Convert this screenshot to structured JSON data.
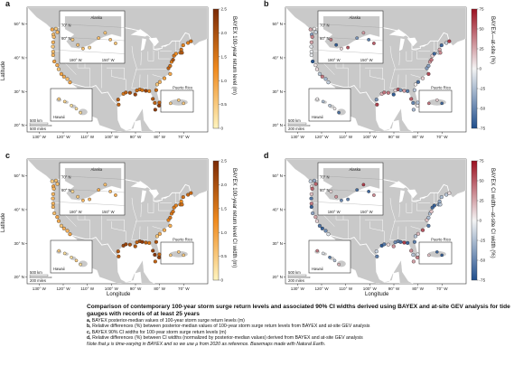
{
  "panels": [
    {
      "id": "a",
      "scale": "sequential",
      "colorbar_title": "BAYEX 100-year return level (m)",
      "ticks": [
        "0",
        "0.5",
        "1.0",
        "1.5",
        "2.0",
        "2.5"
      ],
      "show_latitude": true,
      "show_longitude": false
    },
    {
      "id": "b",
      "scale": "diverging",
      "colorbar_title": "BAYEX—at-site (%)",
      "ticks": [
        "-75",
        "-50",
        "-25",
        "0",
        "25",
        "50",
        "75"
      ],
      "show_latitude": false,
      "show_longitude": false
    },
    {
      "id": "c",
      "scale": "sequential",
      "colorbar_title": "BAYEX 100-year return level CI width (m)",
      "ticks": [
        "0",
        "0.5",
        "1.0",
        "1.5",
        "2.0",
        "2.5"
      ],
      "show_latitude": true,
      "show_longitude": true
    },
    {
      "id": "d",
      "scale": "diverging",
      "colorbar_title": "BAYEX CI width—at-site CI width (%)",
      "ticks": [
        "-75",
        "-50",
        "-25",
        "0",
        "25",
        "50",
        "75"
      ],
      "show_latitude": false,
      "show_longitude": true
    }
  ],
  "axes": {
    "ylabel": "Latitude",
    "xlabel": "Longitude",
    "lat_ticks": [
      "20° N",
      "30° N",
      "40° N",
      "50° N"
    ],
    "lon_ticks": [
      "130° W",
      "120° W",
      "110° W",
      "100° W",
      "90° W",
      "80° W",
      "70° W"
    ]
  },
  "insets": {
    "alaska": "Alaska",
    "hawaii": "Hawaii",
    "puerto_rico": "Puerto Rico",
    "scalebar_km": "500 km",
    "scalebar_mi": "500 miles",
    "scalebar_mi_small": "200 miles"
  },
  "colors": {
    "land": "#c9c9c9",
    "ocean": "#ffffff",
    "border": "#ffffff",
    "seq_low": "#fff5c0",
    "seq_mid": "#f08a1e",
    "seq_high": "#7a2a06",
    "div_neg": "#1f4e8c",
    "div_zero": "#f4f4f4",
    "div_pos": "#9b1020"
  },
  "caption": {
    "title": "Comparison of contemporary 100-year storm surge return levels and associated 90% CI widths derived using BAYEX and at-site GEV analysis for tide gauges with records of at least 25 years",
    "items": [
      {
        "k": "a,",
        "t": " BAYEX posterior-median values of 100-year storm surge return levels (m)"
      },
      {
        "k": "b,",
        "t": " Relative differences (%) between posterior-median values of 100-year storm surge return levels from BAYEX and at-site GEV analysis"
      },
      {
        "k": "c,",
        "t": " BAYEX 90% CI widths for 100-year storm surge return levels (m)"
      },
      {
        "k": "d,",
        "t": " Relative differences (%) between CI widths (normalized by posterior-median values) derived from BAYEX and at-site GEV analysis"
      }
    ],
    "note": "Note that μ is time-varying in BAYEX and so we use μ from 2020 as reference. Basemaps made with Natural Earth."
  }
}
